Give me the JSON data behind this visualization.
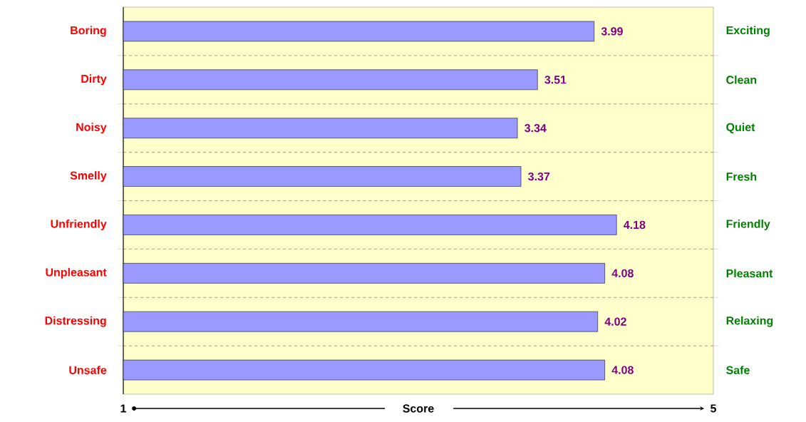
{
  "chart_data": {
    "type": "bar",
    "orientation": "horizontal",
    "categories": [
      "Boring",
      "Dirty",
      "Noisy",
      "Smelly",
      "Unfriendly",
      "Unpleasant",
      "Distressing",
      "Unsafe"
    ],
    "values": [
      3.99,
      3.51,
      3.34,
      3.37,
      4.18,
      4.08,
      4.02,
      4.08
    ],
    "color": "#9999ff",
    "data_labels": true,
    "xlabel": "Score",
    "xlim": [
      0,
      5
    ],
    "xticks": [
      5
    ],
    "grid": "y",
    "annotations": [
      "Exciting",
      "Clean",
      "Quiet",
      "Fresh",
      "Friendly",
      "Pleasant",
      "Relaxing",
      "Safe",
      "1"
    ]
  }
}
